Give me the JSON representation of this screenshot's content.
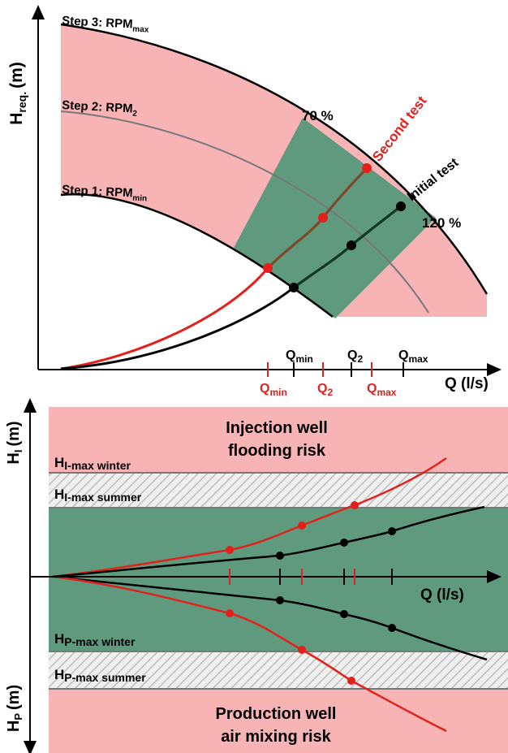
{
  "colors": {
    "pink": "#f8b4b4",
    "green": "#5f9a7e",
    "dark_green": "#3f7a5a",
    "red": "#e3211c",
    "black": "#000000",
    "gray_curve": "#777777",
    "brown_curve": "#7a4a2a",
    "hatch": "#d9d9d9"
  },
  "top": {
    "y_axis_label": "H",
    "y_axis_sub": "req.",
    "y_axis_unit": "(m)",
    "x_axis_label": "Q (l/s)",
    "curve_max": {
      "step": "Step 3: RPM",
      "sub": "max"
    },
    "curve_2": {
      "step": "Step 2: RPM",
      "sub": "2"
    },
    "curve_min": {
      "step": "Step 1: RPM",
      "sub": "min"
    },
    "eff_low": "70 %",
    "eff_high": "120 %",
    "second_test": "Second test",
    "initial_test": "Initial test",
    "q_black": [
      {
        "main": "Q",
        "sub": "min"
      },
      {
        "main": "Q",
        "sub": "2"
      },
      {
        "main": "Q",
        "sub": "max"
      }
    ],
    "q_red": [
      {
        "main": "Q",
        "sub": "min"
      },
      {
        "main": "Q",
        "sub": "2"
      },
      {
        "main": "Q",
        "sub": "max"
      }
    ]
  },
  "bottom": {
    "hi_label": "H",
    "hi_sub": "I",
    "hi_unit": "(m)",
    "hp_label": "H",
    "hp_sub": "P",
    "hp_unit": "(m)",
    "x_axis_label": "Q (l/s)",
    "injection_risk_1": "Injection well",
    "injection_risk_2": "flooding risk",
    "hi_max_winter": {
      "main": "H",
      "sub": "I-max winter"
    },
    "hi_max_summer": {
      "main": "H",
      "sub": "I-max summer"
    },
    "hp_max_winter": {
      "main": "H",
      "sub": "P-max winter"
    },
    "hp_max_summer": {
      "main": "H",
      "sub": "P-max summer"
    },
    "production_risk_1": "Production well",
    "production_risk_2": "air mixing risk"
  }
}
